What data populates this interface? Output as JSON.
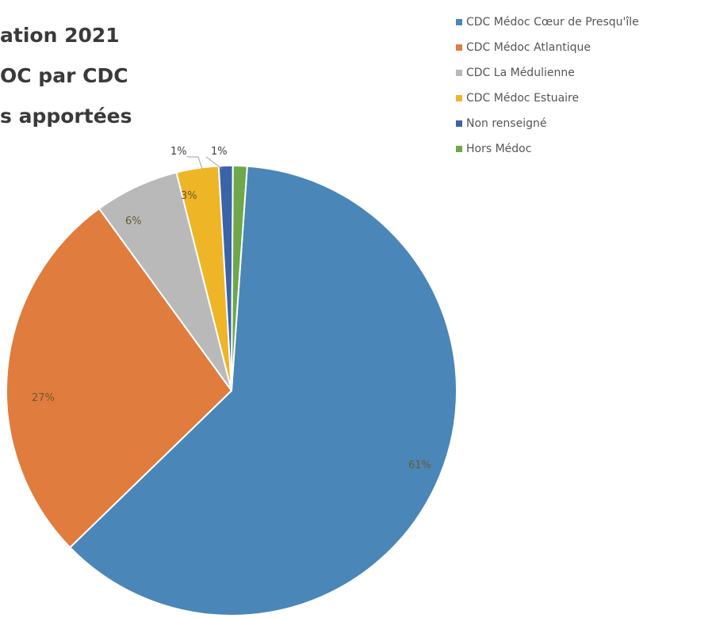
{
  "title_lines": [
    "ation 2021",
    "OC par CDC",
    "s apportées"
  ],
  "chart_data": {
    "type": "pie",
    "title": "",
    "slices": [
      {
        "name": "CDC Médoc Cœur de Presqu'île",
        "value": 61,
        "label": "61%",
        "color": "#4a86b8"
      },
      {
        "name": "CDC Médoc Atlantique",
        "value": 27,
        "label": "27%",
        "color": "#e07c3e"
      },
      {
        "name": "CDC La Médulienne",
        "value": 6,
        "label": "6%",
        "color": "#b9b9b9"
      },
      {
        "name": "CDC Médoc Estuaire",
        "value": 3,
        "label": "3%",
        "color": "#eeb527"
      },
      {
        "name": "Non renseigné",
        "value": 1,
        "label": "1%",
        "color": "#3b63a8"
      },
      {
        "name": "Hors Médoc",
        "value": 1,
        "label": "1%",
        "color": "#6ea84a"
      }
    ],
    "legend_position": "top-right"
  }
}
